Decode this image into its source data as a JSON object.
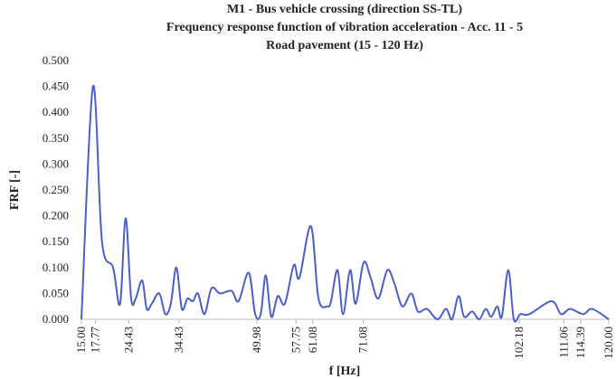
{
  "chart_data": {
    "type": "line",
    "title": "M1 - Bus vehicle crossing (direction SS-TL)",
    "subtitle": "Frequency response function of vibration acceleration - Acc. 11 - 5",
    "subtitle2": "Road pavement (15 - 120 Hz)",
    "x_label": "f [Hz]",
    "y_label": "FRF [-]",
    "color": "#4a5fc8",
    "grid": false,
    "xlim": [
      15,
      120
    ],
    "ylim": [
      0,
      0.5
    ],
    "xticks": [
      {
        "value": 15,
        "label": "15.00"
      },
      17.77,
      24.43,
      34.43,
      49.98,
      57.75,
      61.08,
      71.08,
      102.18,
      111.06,
      114.39,
      {
        "value": 120,
        "label": "120.00"
      }
    ],
    "yticks": [
      {
        "value": 0,
        "label": "0.000"
      },
      {
        "value": 0.05,
        "label": "0.050"
      },
      {
        "value": 0.1,
        "label": "0.100"
      },
      {
        "value": 0.15,
        "label": "0.150"
      },
      {
        "value": 0.2,
        "label": "0.200"
      },
      {
        "value": 0.25,
        "label": "0.250"
      },
      {
        "value": 0.3,
        "label": "0.300"
      },
      {
        "value": 0.35,
        "label": "0.350"
      },
      {
        "value": 0.4,
        "label": "0.400"
      },
      {
        "value": 0.45,
        "label": "0.450"
      },
      {
        "value": 0.5,
        "label": "0.500"
      }
    ],
    "x": [
      15,
      17.3,
      19.1,
      21.3,
      22.7,
      23.8,
      24.9,
      25.8,
      27.1,
      28.0,
      29.0,
      30.5,
      31.7,
      32.8,
      33.9,
      35.0,
      36.1,
      37.2,
      38.2,
      39.5,
      40.9,
      42.6,
      44.9,
      46.3,
      48.3,
      49.6,
      50.7,
      51.7,
      52.8,
      54.1,
      55.5,
      57.3,
      58.4,
      60.7,
      62.2,
      64.0,
      64.7,
      66.0,
      67.1,
      68.5,
      69.6,
      71.2,
      72.6,
      74.1,
      75.9,
      77.3,
      78.9,
      80.7,
      82.0,
      83.8,
      85.9,
      87.6,
      88.8,
      90.1,
      91.2,
      92.8,
      94.2,
      95.5,
      96.6,
      97.8,
      98.7,
      100.0,
      101.1,
      102.4,
      104.2,
      108.6,
      110.5,
      112.3,
      114.9,
      116.7,
      120
    ],
    "values": [
      0.0,
      0.45,
      0.15,
      0.1,
      0.03,
      0.195,
      0.04,
      0.04,
      0.075,
      0.02,
      0.03,
      0.05,
      0.01,
      0.03,
      0.1,
      0.02,
      0.04,
      0.035,
      0.05,
      0.01,
      0.06,
      0.05,
      0.055,
      0.035,
      0.09,
      0.01,
      0.01,
      0.085,
      0.005,
      0.045,
      0.03,
      0.105,
      0.08,
      0.18,
      0.04,
      0.025,
      0.035,
      0.095,
      0.01,
      0.095,
      0.03,
      0.11,
      0.08,
      0.04,
      0.095,
      0.07,
      0.025,
      0.05,
      0.015,
      0.02,
      0.0,
      0.02,
      0.0,
      0.045,
      0.005,
      0.015,
      0.0,
      0.02,
      0.005,
      0.025,
      0.005,
      0.095,
      0.0,
      0.01,
      0.01,
      0.035,
      0.01,
      0.02,
      0.01,
      0.02,
      0.0
    ]
  }
}
